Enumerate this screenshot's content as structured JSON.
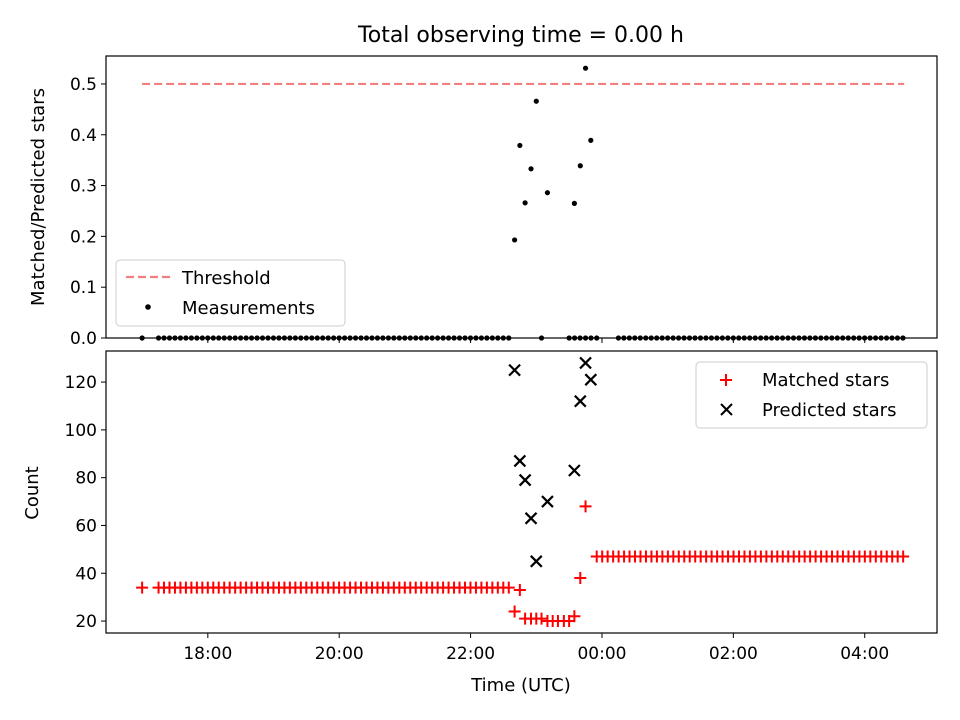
{
  "title": "Total observing time = 0.00 h",
  "colors": {
    "threshold": "#f08080",
    "matched": "#ff0000",
    "predicted": "#000000",
    "measurement": "#000000"
  },
  "chart_data": [
    {
      "type": "scatter",
      "ylabel": "Matched/Predicted stars",
      "xlim": [
        16.45,
        29.1
      ],
      "ylim": [
        0,
        0.555
      ],
      "yticks": [
        0.0,
        0.1,
        0.2,
        0.3,
        0.4,
        0.5
      ],
      "ytick_labels": [
        "0.0",
        "0.1",
        "0.2",
        "0.3",
        "0.4",
        "0.5"
      ],
      "threshold": {
        "name": "Threshold",
        "value": 0.5,
        "x_range": [
          17.0,
          28.6
        ]
      },
      "legend": {
        "placement": "lower-left",
        "entries": [
          "Threshold",
          "Measurements"
        ]
      },
      "series": [
        {
          "name": "Measurements",
          "zero_runs": [
            {
              "start": 17.0,
              "end": 17.0,
              "step": 0.25
            },
            {
              "start": 17.25,
              "end": 22.6,
              "step": 0.0833
            },
            {
              "start": 23.5,
              "end": 23.9,
              "step": 0.0833
            },
            {
              "start": 24.25,
              "end": 28.6,
              "step": 0.0833
            }
          ],
          "points": [
            {
              "x": 22.67,
              "y": 0.193
            },
            {
              "x": 22.75,
              "y": 0.379
            },
            {
              "x": 22.83,
              "y": 0.266
            },
            {
              "x": 22.92,
              "y": 0.333
            },
            {
              "x": 23.0,
              "y": 0.466
            },
            {
              "x": 23.08,
              "y": 0.0
            },
            {
              "x": 23.17,
              "y": 0.286
            },
            {
              "x": 23.58,
              "y": 0.265
            },
            {
              "x": 23.67,
              "y": 0.339
            },
            {
              "x": 23.75,
              "y": 0.531
            },
            {
              "x": 23.83,
              "y": 0.389
            },
            {
              "x": 23.92,
              "y": 0.0
            }
          ]
        }
      ]
    },
    {
      "type": "scatter",
      "xlabel": "Time (UTC)",
      "ylabel": "Count",
      "xlim": [
        16.45,
        29.1
      ],
      "ylim": [
        15,
        133
      ],
      "yticks": [
        20,
        40,
        60,
        80,
        100,
        120
      ],
      "xticks": [
        18,
        20,
        22,
        24,
        26,
        28
      ],
      "xtick_labels": [
        "18:00",
        "20:00",
        "22:00",
        "00:00",
        "02:00",
        "04:00"
      ],
      "legend": {
        "placement": "top-right",
        "entries": [
          "Matched stars",
          "Predicted stars"
        ]
      },
      "series": [
        {
          "name": "Matched stars",
          "marker": "plus",
          "runs": [
            {
              "start": 17.0,
              "end": 17.0,
              "step": 0.25,
              "y": 34
            },
            {
              "start": 17.25,
              "end": 22.6,
              "step": 0.0833,
              "y": 34
            },
            {
              "start": 23.92,
              "end": 28.6,
              "step": 0.0833,
              "y": 47
            }
          ],
          "points": [
            {
              "x": 22.67,
              "y": 24
            },
            {
              "x": 22.75,
              "y": 33
            },
            {
              "x": 22.83,
              "y": 21
            },
            {
              "x": 22.92,
              "y": 21
            },
            {
              "x": 23.0,
              "y": 21
            },
            {
              "x": 23.08,
              "y": 21
            },
            {
              "x": 23.17,
              "y": 20
            },
            {
              "x": 23.25,
              "y": 20
            },
            {
              "x": 23.33,
              "y": 20
            },
            {
              "x": 23.42,
              "y": 20
            },
            {
              "x": 23.5,
              "y": 20
            },
            {
              "x": 23.58,
              "y": 22
            },
            {
              "x": 23.67,
              "y": 38
            },
            {
              "x": 23.75,
              "y": 68
            }
          ]
        },
        {
          "name": "Predicted stars",
          "marker": "x",
          "points": [
            {
              "x": 22.67,
              "y": 125
            },
            {
              "x": 22.75,
              "y": 87
            },
            {
              "x": 22.83,
              "y": 79
            },
            {
              "x": 22.92,
              "y": 63
            },
            {
              "x": 23.0,
              "y": 45
            },
            {
              "x": 23.17,
              "y": 70
            },
            {
              "x": 23.58,
              "y": 83
            },
            {
              "x": 23.67,
              "y": 112
            },
            {
              "x": 23.75,
              "y": 128
            },
            {
              "x": 23.83,
              "y": 121
            }
          ]
        }
      ]
    }
  ]
}
